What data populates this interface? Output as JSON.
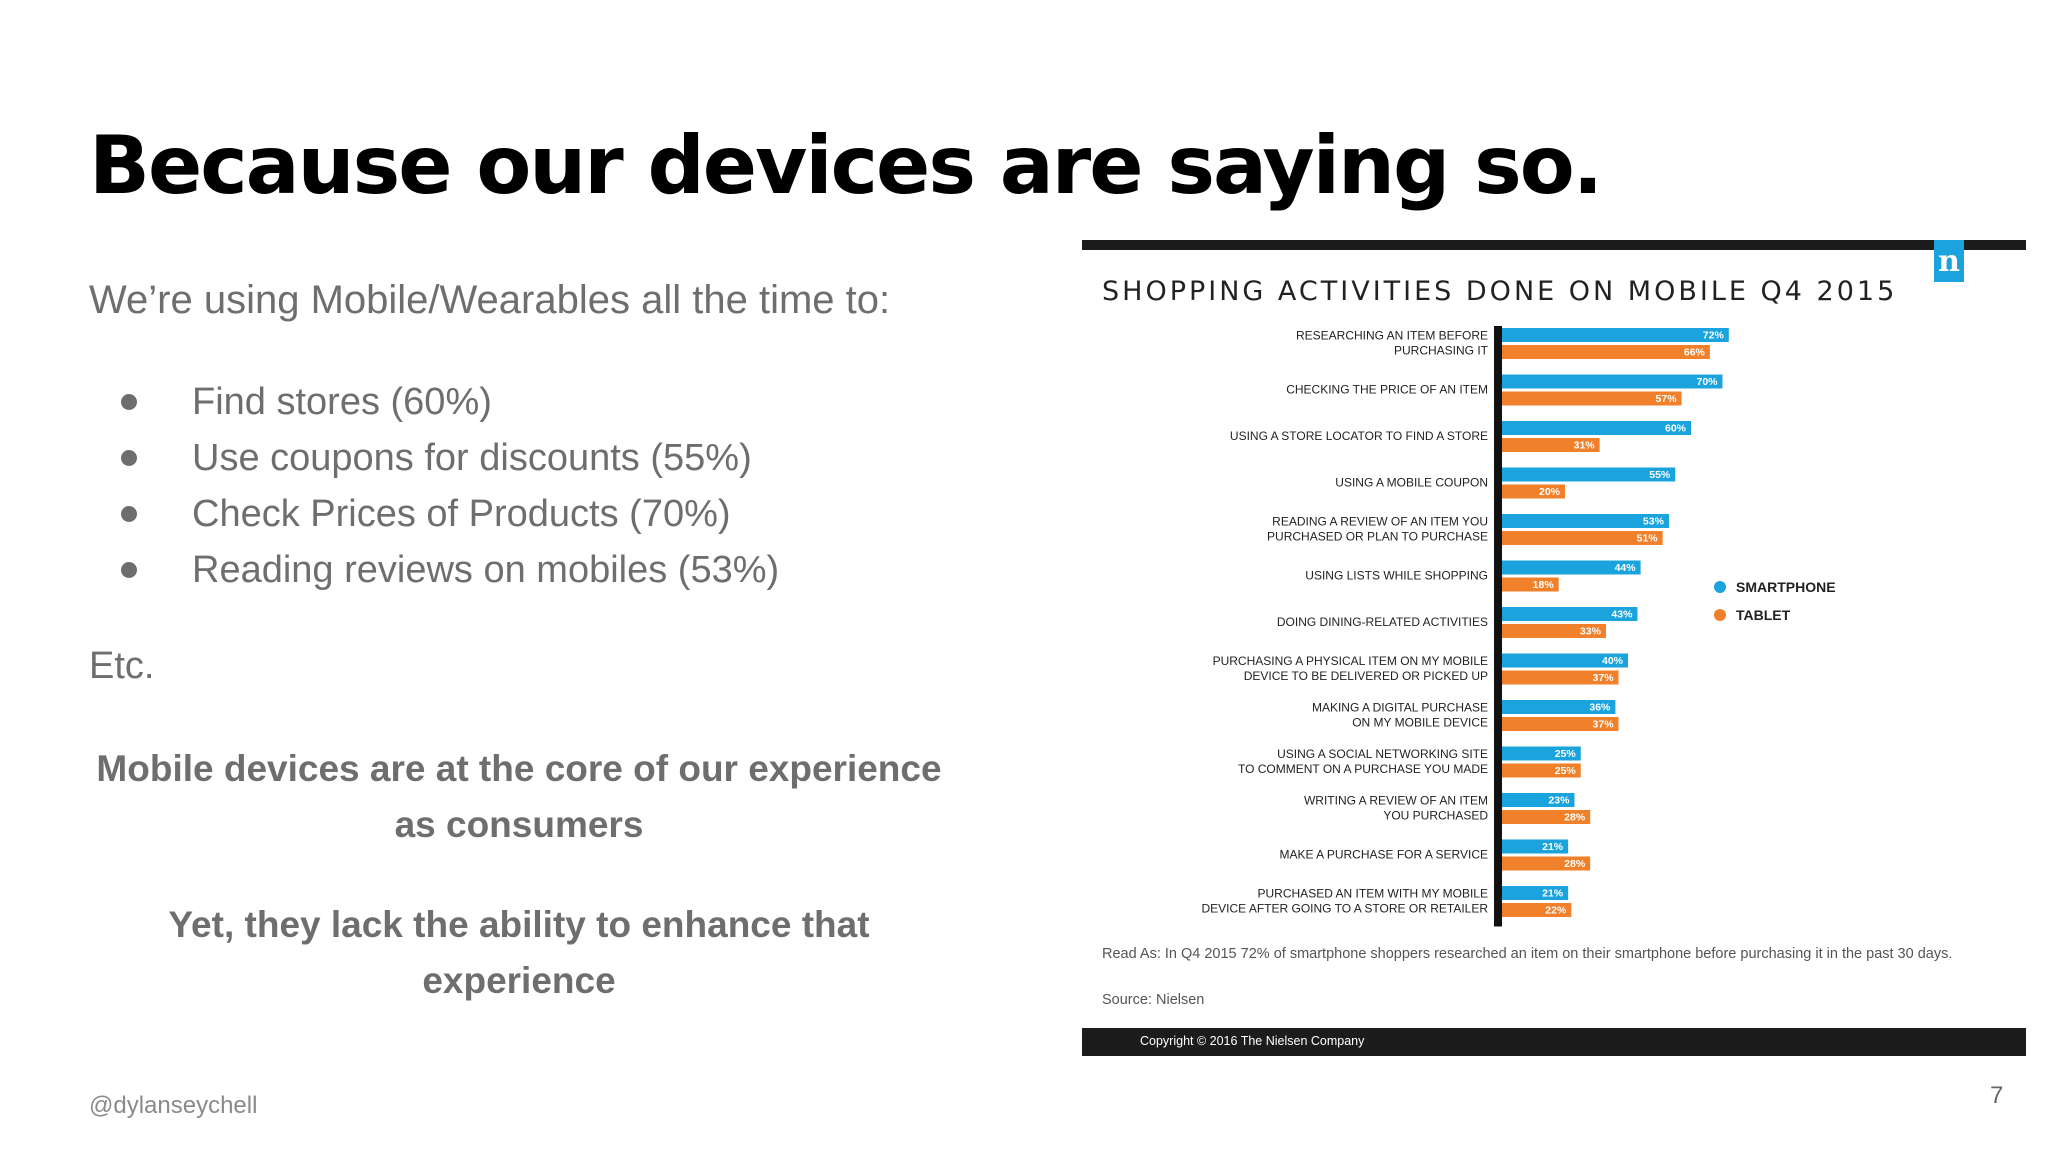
{
  "slide": {
    "title": "Because our devices are saying so.",
    "intro": "We’re using Mobile/Wearables all the time to:",
    "bullets": [
      "Find stores (60%)",
      "Use coupons for discounts (55%)",
      "Check Prices of Products (70%)",
      "Reading reviews on mobiles (53%)"
    ],
    "etc": "Etc.",
    "emphasis_1": "Mobile devices are at the core of our experience as consumers",
    "emphasis_2": "Yet, they lack the ability to enhance that experience",
    "handle": "@dylanseychell",
    "page_number": "7"
  },
  "panel": {
    "logo": "n",
    "read_as": "Read As: In Q4 2015 72% of smartphone shoppers researched an item on their smartphone before purchasing it in the past 30 days.",
    "source": "Source: Nielsen",
    "copyright": "Copyright © 2016 The Nielsen Company"
  },
  "colors": {
    "smartphone": "#1aa3dd",
    "tablet": "#f0802a",
    "axis": "#111111"
  },
  "chart_data": {
    "type": "bar",
    "orientation": "horizontal",
    "title": "SHOPPING ACTIVITIES DONE ON MOBILE Q4 2015",
    "categories": [
      [
        "RESEARCHING AN ITEM BEFORE",
        "PURCHASING IT"
      ],
      [
        "CHECKING THE PRICE OF AN ITEM"
      ],
      [
        "USING A STORE LOCATOR TO FIND A STORE"
      ],
      [
        "USING A MOBILE COUPON"
      ],
      [
        "READING A REVIEW OF AN ITEM YOU",
        "PURCHASED OR PLAN TO PURCHASE"
      ],
      [
        "USING LISTS WHILE SHOPPING"
      ],
      [
        "DOING DINING-RELATED ACTIVITIES"
      ],
      [
        "PURCHASING A PHYSICAL ITEM ON MY MOBILE",
        "DEVICE TO BE DELIVERED OR PICKED UP"
      ],
      [
        "MAKING A DIGITAL PURCHASE",
        "ON MY MOBILE DEVICE"
      ],
      [
        "USING A SOCIAL NETWORKING SITE",
        "TO COMMENT ON A PURCHASE YOU MADE"
      ],
      [
        "WRITING A REVIEW OF AN ITEM",
        "YOU PURCHASED"
      ],
      [
        "MAKE A PURCHASE FOR A SERVICE"
      ],
      [
        "PURCHASED AN ITEM WITH MY MOBILE",
        "DEVICE AFTER GOING TO A STORE OR RETAILER"
      ]
    ],
    "series": [
      {
        "name": "SMARTPHONE",
        "values": [
          72,
          70,
          60,
          55,
          53,
          44,
          43,
          40,
          36,
          25,
          23,
          21,
          21
        ]
      },
      {
        "name": "TABLET",
        "values": [
          66,
          57,
          31,
          20,
          51,
          18,
          33,
          37,
          37,
          25,
          28,
          28,
          22
        ]
      }
    ],
    "value_suffix": "%",
    "legend_position": "right"
  }
}
